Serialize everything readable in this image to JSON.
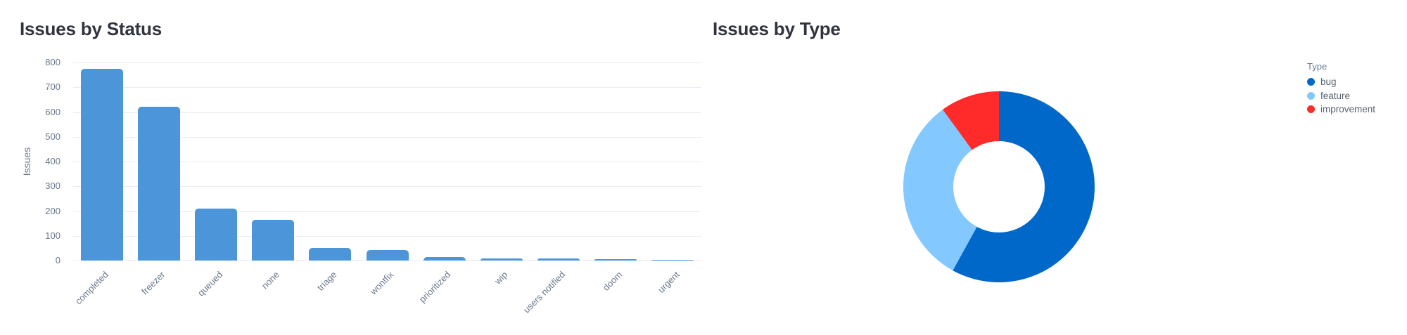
{
  "chart_data": [
    {
      "type": "bar",
      "title": "Issues by Status",
      "xlabel": "",
      "ylabel": "Issues",
      "categories": [
        "completed",
        "freezer",
        "queued",
        "none",
        "triage",
        "wontfix",
        "prioritized",
        "wip",
        "users notified",
        "doom",
        "urgent"
      ],
      "values": [
        775,
        620,
        210,
        165,
        52,
        42,
        13,
        9,
        9,
        5,
        2
      ],
      "ylim": [
        0,
        800
      ],
      "y_ticks": [
        0,
        100,
        200,
        300,
        400,
        500,
        600,
        700,
        800
      ],
      "grid": true,
      "bar_color": "#4c95d9",
      "tick_label_rotation": -45
    },
    {
      "type": "pie",
      "donut": true,
      "title": "Issues by Type",
      "legend_title": "Type",
      "legend_position": "right",
      "labels": [
        "bug",
        "feature",
        "improvement"
      ],
      "values_percent": [
        58,
        32,
        10
      ],
      "colors": [
        "#0068c9",
        "#83c9ff",
        "#ff2b2b"
      ]
    }
  ],
  "colors": {
    "background": "#ffffff",
    "title_text": "#31333f",
    "axis_text": "#69788c",
    "gridline": "#e8ebf2",
    "legend_title_text": "#6b7a90",
    "legend_item_text": "#5a6572"
  }
}
